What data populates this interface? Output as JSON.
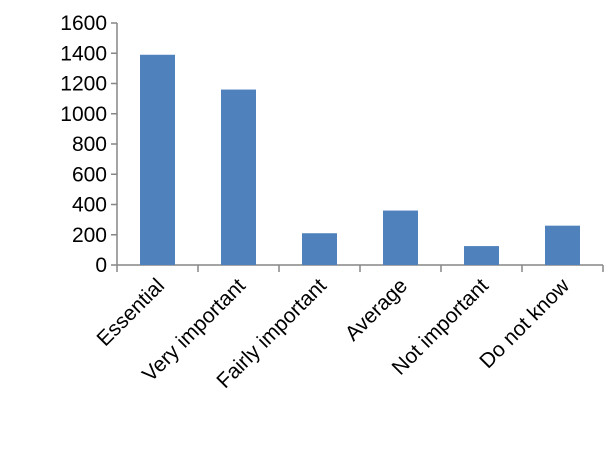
{
  "chart_data": {
    "type": "bar",
    "categories": [
      "Essential",
      "Very important",
      "Fairly important",
      "Average",
      "Not important",
      "Do not know"
    ],
    "values": [
      1390,
      1160,
      210,
      360,
      125,
      260
    ],
    "ylim": [
      0,
      1600
    ],
    "yticks": [
      0,
      200,
      400,
      600,
      800,
      1000,
      1200,
      1400,
      1600
    ],
    "grid": false,
    "legend": "none",
    "bar_color": "#4F81BD",
    "axis_color": "#868686"
  }
}
